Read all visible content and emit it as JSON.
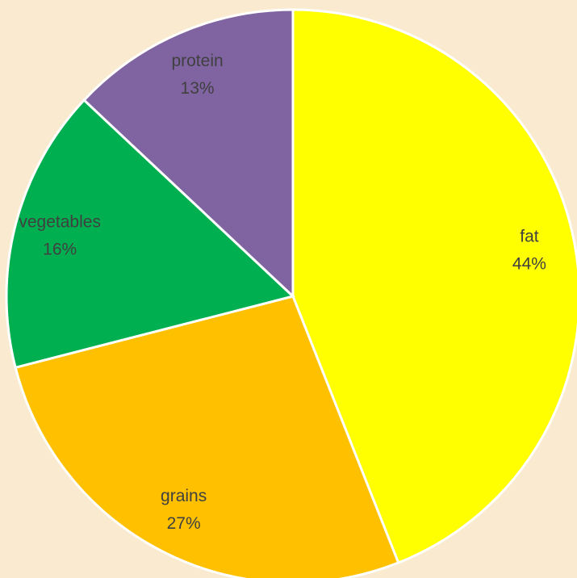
{
  "chart_data": {
    "type": "pie",
    "categories": [
      "fat",
      "grains",
      "vegetables",
      "protein"
    ],
    "values": [
      44,
      27,
      16,
      13
    ],
    "value_labels": [
      "44%",
      "27%",
      "16%",
      "13%"
    ],
    "colors": [
      "#ffff00",
      "#ffc000",
      "#00b050",
      "#8064a2"
    ]
  }
}
